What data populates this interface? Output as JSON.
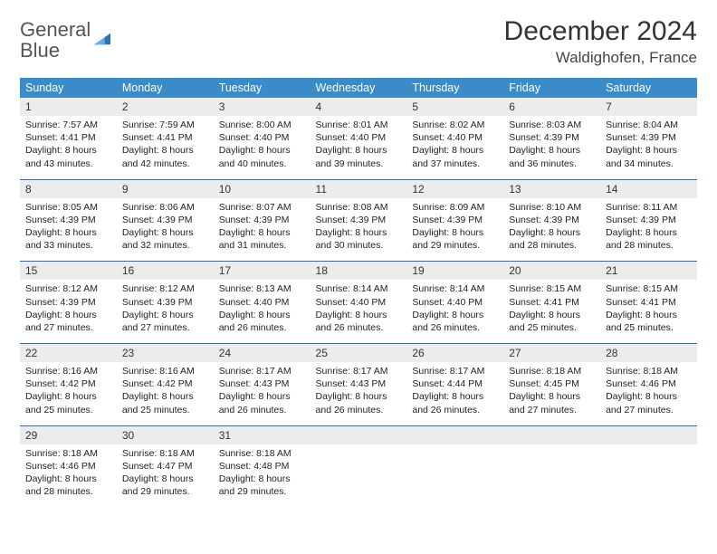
{
  "logo": {
    "word1": "General",
    "word2": "Blue"
  },
  "title": "December 2024",
  "location": "Waldighofen, France",
  "colors": {
    "header_bg": "#3b8bc9",
    "header_text": "#ffffff",
    "row_sep": "#2d6fa8",
    "daynum_bg": "#ececec",
    "text": "#222222",
    "logo_gray": "#555555",
    "logo_blue": "#2d73b8"
  },
  "typography": {
    "title_fontsize": 30,
    "location_fontsize": 17,
    "dayhead_fontsize": 12.5,
    "daynum_fontsize": 12,
    "cell_fontsize": 10.5
  },
  "day_headers": [
    "Sunday",
    "Monday",
    "Tuesday",
    "Wednesday",
    "Thursday",
    "Friday",
    "Saturday"
  ],
  "weeks": [
    [
      {
        "num": "1",
        "sunrise": "Sunrise: 7:57 AM",
        "sunset": "Sunset: 4:41 PM",
        "day1": "Daylight: 8 hours",
        "day2": "and 43 minutes."
      },
      {
        "num": "2",
        "sunrise": "Sunrise: 7:59 AM",
        "sunset": "Sunset: 4:41 PM",
        "day1": "Daylight: 8 hours",
        "day2": "and 42 minutes."
      },
      {
        "num": "3",
        "sunrise": "Sunrise: 8:00 AM",
        "sunset": "Sunset: 4:40 PM",
        "day1": "Daylight: 8 hours",
        "day2": "and 40 minutes."
      },
      {
        "num": "4",
        "sunrise": "Sunrise: 8:01 AM",
        "sunset": "Sunset: 4:40 PM",
        "day1": "Daylight: 8 hours",
        "day2": "and 39 minutes."
      },
      {
        "num": "5",
        "sunrise": "Sunrise: 8:02 AM",
        "sunset": "Sunset: 4:40 PM",
        "day1": "Daylight: 8 hours",
        "day2": "and 37 minutes."
      },
      {
        "num": "6",
        "sunrise": "Sunrise: 8:03 AM",
        "sunset": "Sunset: 4:39 PM",
        "day1": "Daylight: 8 hours",
        "day2": "and 36 minutes."
      },
      {
        "num": "7",
        "sunrise": "Sunrise: 8:04 AM",
        "sunset": "Sunset: 4:39 PM",
        "day1": "Daylight: 8 hours",
        "day2": "and 34 minutes."
      }
    ],
    [
      {
        "num": "8",
        "sunrise": "Sunrise: 8:05 AM",
        "sunset": "Sunset: 4:39 PM",
        "day1": "Daylight: 8 hours",
        "day2": "and 33 minutes."
      },
      {
        "num": "9",
        "sunrise": "Sunrise: 8:06 AM",
        "sunset": "Sunset: 4:39 PM",
        "day1": "Daylight: 8 hours",
        "day2": "and 32 minutes."
      },
      {
        "num": "10",
        "sunrise": "Sunrise: 8:07 AM",
        "sunset": "Sunset: 4:39 PM",
        "day1": "Daylight: 8 hours",
        "day2": "and 31 minutes."
      },
      {
        "num": "11",
        "sunrise": "Sunrise: 8:08 AM",
        "sunset": "Sunset: 4:39 PM",
        "day1": "Daylight: 8 hours",
        "day2": "and 30 minutes."
      },
      {
        "num": "12",
        "sunrise": "Sunrise: 8:09 AM",
        "sunset": "Sunset: 4:39 PM",
        "day1": "Daylight: 8 hours",
        "day2": "and 29 minutes."
      },
      {
        "num": "13",
        "sunrise": "Sunrise: 8:10 AM",
        "sunset": "Sunset: 4:39 PM",
        "day1": "Daylight: 8 hours",
        "day2": "and 28 minutes."
      },
      {
        "num": "14",
        "sunrise": "Sunrise: 8:11 AM",
        "sunset": "Sunset: 4:39 PM",
        "day1": "Daylight: 8 hours",
        "day2": "and 28 minutes."
      }
    ],
    [
      {
        "num": "15",
        "sunrise": "Sunrise: 8:12 AM",
        "sunset": "Sunset: 4:39 PM",
        "day1": "Daylight: 8 hours",
        "day2": "and 27 minutes."
      },
      {
        "num": "16",
        "sunrise": "Sunrise: 8:12 AM",
        "sunset": "Sunset: 4:39 PM",
        "day1": "Daylight: 8 hours",
        "day2": "and 27 minutes."
      },
      {
        "num": "17",
        "sunrise": "Sunrise: 8:13 AM",
        "sunset": "Sunset: 4:40 PM",
        "day1": "Daylight: 8 hours",
        "day2": "and 26 minutes."
      },
      {
        "num": "18",
        "sunrise": "Sunrise: 8:14 AM",
        "sunset": "Sunset: 4:40 PM",
        "day1": "Daylight: 8 hours",
        "day2": "and 26 minutes."
      },
      {
        "num": "19",
        "sunrise": "Sunrise: 8:14 AM",
        "sunset": "Sunset: 4:40 PM",
        "day1": "Daylight: 8 hours",
        "day2": "and 26 minutes."
      },
      {
        "num": "20",
        "sunrise": "Sunrise: 8:15 AM",
        "sunset": "Sunset: 4:41 PM",
        "day1": "Daylight: 8 hours",
        "day2": "and 25 minutes."
      },
      {
        "num": "21",
        "sunrise": "Sunrise: 8:15 AM",
        "sunset": "Sunset: 4:41 PM",
        "day1": "Daylight: 8 hours",
        "day2": "and 25 minutes."
      }
    ],
    [
      {
        "num": "22",
        "sunrise": "Sunrise: 8:16 AM",
        "sunset": "Sunset: 4:42 PM",
        "day1": "Daylight: 8 hours",
        "day2": "and 25 minutes."
      },
      {
        "num": "23",
        "sunrise": "Sunrise: 8:16 AM",
        "sunset": "Sunset: 4:42 PM",
        "day1": "Daylight: 8 hours",
        "day2": "and 25 minutes."
      },
      {
        "num": "24",
        "sunrise": "Sunrise: 8:17 AM",
        "sunset": "Sunset: 4:43 PM",
        "day1": "Daylight: 8 hours",
        "day2": "and 26 minutes."
      },
      {
        "num": "25",
        "sunrise": "Sunrise: 8:17 AM",
        "sunset": "Sunset: 4:43 PM",
        "day1": "Daylight: 8 hours",
        "day2": "and 26 minutes."
      },
      {
        "num": "26",
        "sunrise": "Sunrise: 8:17 AM",
        "sunset": "Sunset: 4:44 PM",
        "day1": "Daylight: 8 hours",
        "day2": "and 26 minutes."
      },
      {
        "num": "27",
        "sunrise": "Sunrise: 8:18 AM",
        "sunset": "Sunset: 4:45 PM",
        "day1": "Daylight: 8 hours",
        "day2": "and 27 minutes."
      },
      {
        "num": "28",
        "sunrise": "Sunrise: 8:18 AM",
        "sunset": "Sunset: 4:46 PM",
        "day1": "Daylight: 8 hours",
        "day2": "and 27 minutes."
      }
    ],
    [
      {
        "num": "29",
        "sunrise": "Sunrise: 8:18 AM",
        "sunset": "Sunset: 4:46 PM",
        "day1": "Daylight: 8 hours",
        "day2": "and 28 minutes."
      },
      {
        "num": "30",
        "sunrise": "Sunrise: 8:18 AM",
        "sunset": "Sunset: 4:47 PM",
        "day1": "Daylight: 8 hours",
        "day2": "and 29 minutes."
      },
      {
        "num": "31",
        "sunrise": "Sunrise: 8:18 AM",
        "sunset": "Sunset: 4:48 PM",
        "day1": "Daylight: 8 hours",
        "day2": "and 29 minutes."
      },
      null,
      null,
      null,
      null
    ]
  ]
}
